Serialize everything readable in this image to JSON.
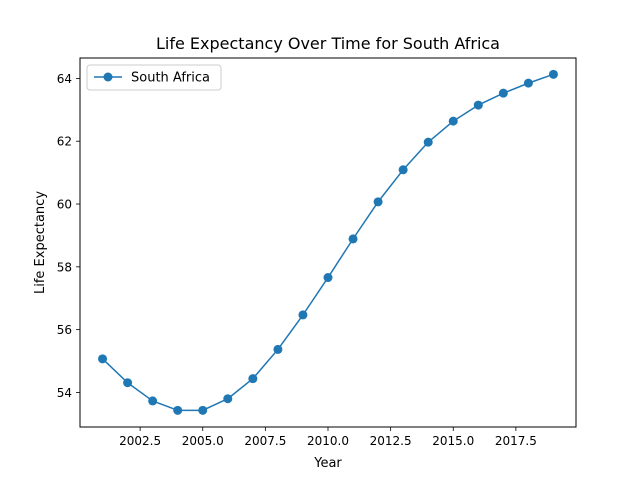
{
  "chart_data": {
    "type": "line",
    "title": "Life Expectancy Over Time for South Africa",
    "xlabel": "Year",
    "ylabel": "Life Expectancy",
    "xlim": [
      2000.1,
      2019.9
    ],
    "ylim": [
      52.9,
      64.65
    ],
    "x_ticks": [
      2002.5,
      2005.0,
      2007.5,
      2010.0,
      2012.5,
      2015.0,
      2017.5
    ],
    "x_tick_labels": [
      "2002.5",
      "2005.0",
      "2007.5",
      "2010.0",
      "2012.5",
      "2015.0",
      "2017.5"
    ],
    "y_ticks": [
      54,
      56,
      58,
      60,
      62,
      64
    ],
    "y_tick_labels": [
      "54",
      "56",
      "58",
      "60",
      "62",
      "64"
    ],
    "grid": false,
    "legend_position": "upper-left",
    "series": [
      {
        "name": "South Africa",
        "color": "#1f77b4",
        "marker": "circle",
        "x": [
          2001,
          2002,
          2003,
          2004,
          2005,
          2006,
          2007,
          2008,
          2009,
          2010,
          2011,
          2012,
          2013,
          2014,
          2015,
          2016,
          2017,
          2018,
          2019
        ],
        "y": [
          55.07,
          54.31,
          53.73,
          53.43,
          53.43,
          53.8,
          54.44,
          55.37,
          56.47,
          57.66,
          58.89,
          60.07,
          61.09,
          61.97,
          62.64,
          63.15,
          63.53,
          63.85,
          64.13
        ]
      }
    ]
  }
}
